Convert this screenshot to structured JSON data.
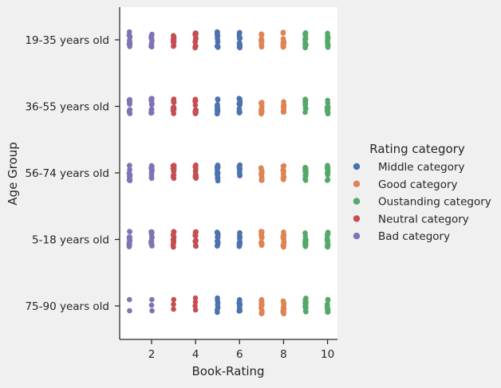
{
  "chart_data": {
    "type": "scatter",
    "title": "",
    "xlabel": "Book-Rating",
    "ylabel": "Age Group",
    "xlim": [
      0.55,
      10.45
    ],
    "x_ticks": [
      2,
      4,
      6,
      8,
      10
    ],
    "grid": false,
    "categories": [
      "19-35 years old",
      "36-55 years old",
      "56-74 years old",
      "5-18 years old",
      "75-90 years old"
    ],
    "legend": {
      "title": "Rating category",
      "placement": "right",
      "entries": [
        {
          "name": "Middle category",
          "color": "#4c72b0"
        },
        {
          "name": "Good category",
          "color": "#dd8452"
        },
        {
          "name": "Oustanding category",
          "color": "#55a868"
        },
        {
          "name": "Neutral category",
          "color": "#c44e52"
        },
        {
          "name": "Bad category",
          "color": "#8172b3"
        }
      ]
    },
    "rating_to_category": {
      "1": "Bad category",
      "2": "Bad category",
      "3": "Neutral category",
      "4": "Neutral category",
      "5": "Middle category",
      "6": "Middle category",
      "7": "Good category",
      "8": "Good category",
      "9": "Oustanding category",
      "10": "Oustanding category"
    },
    "series": [
      {
        "age_group": "19-35 years old",
        "ratings_present": [
          1,
          2,
          3,
          4,
          5,
          6,
          7,
          8,
          9,
          10
        ],
        "dense": true
      },
      {
        "age_group": "36-55 years old",
        "ratings_present": [
          1,
          2,
          3,
          4,
          5,
          6,
          7,
          8,
          9,
          10
        ],
        "dense": true
      },
      {
        "age_group": "56-74 years old",
        "ratings_present": [
          1,
          2,
          3,
          4,
          5,
          6,
          7,
          8,
          9,
          10
        ],
        "dense": true
      },
      {
        "age_group": "5-18 years old",
        "ratings_present": [
          1,
          2,
          3,
          4,
          5,
          6,
          7,
          8,
          9,
          10
        ],
        "dense": true
      },
      {
        "age_group": "75-90 years old",
        "ratings_present": [
          1,
          2,
          3,
          4,
          5,
          6,
          7,
          8,
          9,
          10
        ],
        "dense": false
      }
    ]
  }
}
